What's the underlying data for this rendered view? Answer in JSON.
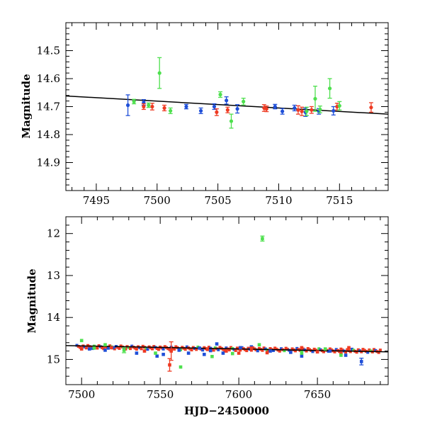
{
  "chart_data": [
    {
      "type": "scatter",
      "title": "",
      "xlabel": "",
      "ylabel": "Magnitude",
      "xlim": [
        7492.5,
        7519
      ],
      "ylim": [
        14.4,
        15.0
      ],
      "y_inverted": true,
      "x_ticks": [
        7495,
        7500,
        7505,
        7510,
        7515
      ],
      "y_ticks": [
        14.5,
        14.6,
        14.7,
        14.8,
        14.9
      ],
      "grid": false,
      "legend": "none",
      "colors": {
        "blue": "#1f4fd8",
        "red": "#ee3a22",
        "green": "#4ee04e",
        "fit": "#000000"
      },
      "fit_line": {
        "x": [
          7492.5,
          7519
        ],
        "y": [
          14.662,
          14.727
        ]
      },
      "series": [
        {
          "color": "blue",
          "x": [
            7497.6,
            7498.9,
            7502.4,
            7503.6,
            7504.7,
            7505.7,
            7506.6,
            7509.7,
            7510.3,
            7511.3,
            7512.2,
            7513.3,
            7514.5
          ],
          "y": [
            14.695,
            14.685,
            14.7,
            14.715,
            14.7,
            14.678,
            14.708,
            14.7,
            14.717,
            14.705,
            14.72,
            14.717,
            14.715
          ],
          "err": [
            0.037,
            0.01,
            0.008,
            0.01,
            0.01,
            0.013,
            0.015,
            0.008,
            0.01,
            0.01,
            0.015,
            0.01,
            0.015
          ]
        },
        {
          "color": "red",
          "x": [
            7498.9,
            7499.6,
            7500.6,
            7504.9,
            7505.8,
            7508.8,
            7509.0,
            7511.6,
            7511.9,
            7512.7,
            7514.8,
            7517.6
          ],
          "y": [
            14.7,
            14.7,
            14.705,
            14.72,
            14.712,
            14.705,
            14.708,
            14.712,
            14.717,
            14.712,
            14.7,
            14.703
          ],
          "err": [
            0.01,
            0.012,
            0.01,
            0.012,
            0.01,
            0.012,
            0.01,
            0.015,
            0.015,
            0.012,
            0.012,
            0.017
          ]
        },
        {
          "color": "green",
          "x": [
            7498.1,
            7499.3,
            7500.2,
            7501.1,
            7505.2,
            7506.1,
            7507.1,
            7512.3,
            7513.0,
            7513.4,
            7514.2,
            7515.0
          ],
          "y": [
            14.682,
            14.695,
            14.58,
            14.715,
            14.657,
            14.752,
            14.682,
            14.717,
            14.672,
            14.71,
            14.635,
            14.697
          ],
          "err": [
            0.008,
            0.008,
            0.055,
            0.01,
            0.01,
            0.025,
            0.012,
            0.015,
            0.045,
            0.012,
            0.035,
            0.015
          ]
        }
      ]
    },
    {
      "type": "scatter",
      "title": "",
      "xlabel": "HJD−2450000",
      "ylabel": "Magnitude",
      "xlim": [
        7490,
        7695
      ],
      "ylim": [
        11.6,
        15.6
      ],
      "y_inverted": true,
      "x_ticks": [
        7500,
        7550,
        7600,
        7650
      ],
      "y_ticks": [
        12,
        13,
        14,
        15
      ],
      "grid": false,
      "legend": "none",
      "colors": {
        "blue": "#1f4fd8",
        "red": "#ee3a22",
        "green": "#4ee04e",
        "fit": "#000000"
      },
      "fit_line": {
        "x": [
          7490,
          7695
        ],
        "y": [
          14.67,
          14.82
        ]
      },
      "band": {
        "x_start": 7497,
        "x_end": 7690,
        "y_start": 14.7,
        "y_end": 14.8,
        "spacing": 1.0
      },
      "series": [
        {
          "color": "blue",
          "x": [
            7505,
            7515,
            7520,
            7535,
            7548,
            7552,
            7562,
            7568,
            7575,
            7578,
            7582,
            7586,
            7590,
            7601,
            7608,
            7620,
            7633,
            7640,
            7658,
            7668,
            7678
          ],
          "y": [
            14.75,
            14.78,
            14.72,
            14.85,
            14.92,
            14.88,
            14.78,
            14.85,
            14.73,
            14.88,
            14.79,
            14.63,
            14.85,
            14.72,
            14.7,
            14.8,
            14.83,
            14.92,
            14.8,
            14.9,
            15.05
          ],
          "err": [
            0,
            0,
            0,
            0,
            0,
            0,
            0,
            0,
            0,
            0,
            0,
            0,
            0,
            0,
            0,
            0,
            0,
            0,
            0,
            0,
            0.08
          ]
        },
        {
          "color": "red",
          "x": [
            7500,
            7519,
            7540,
            7556,
            7557,
            7580,
            7592,
            7600,
            7608,
            7618,
            7640,
            7650,
            7665,
            7670
          ],
          "y": [
            14.75,
            14.72,
            14.8,
            15.13,
            14.8,
            14.75,
            14.8,
            14.85,
            14.73,
            14.84,
            14.72,
            14.82,
            14.85,
            14.72
          ],
          "err": [
            0,
            0,
            0,
            0.15,
            0.22,
            0,
            0,
            0,
            0,
            0,
            0,
            0,
            0,
            0
          ]
        },
        {
          "color": "green",
          "x": [
            7500,
            7508,
            7515,
            7527,
            7547,
            7563,
            7583,
            7596,
            7613,
            7615,
            7640,
            7655,
            7665
          ],
          "y": [
            14.55,
            14.73,
            14.65,
            14.78,
            14.85,
            15.18,
            14.93,
            14.86,
            14.65,
            12.12,
            14.85,
            14.75,
            14.9
          ],
          "err": [
            0,
            0,
            0,
            0.06,
            0,
            0,
            0,
            0,
            0,
            0.06,
            0,
            0,
            0
          ]
        }
      ]
    }
  ]
}
